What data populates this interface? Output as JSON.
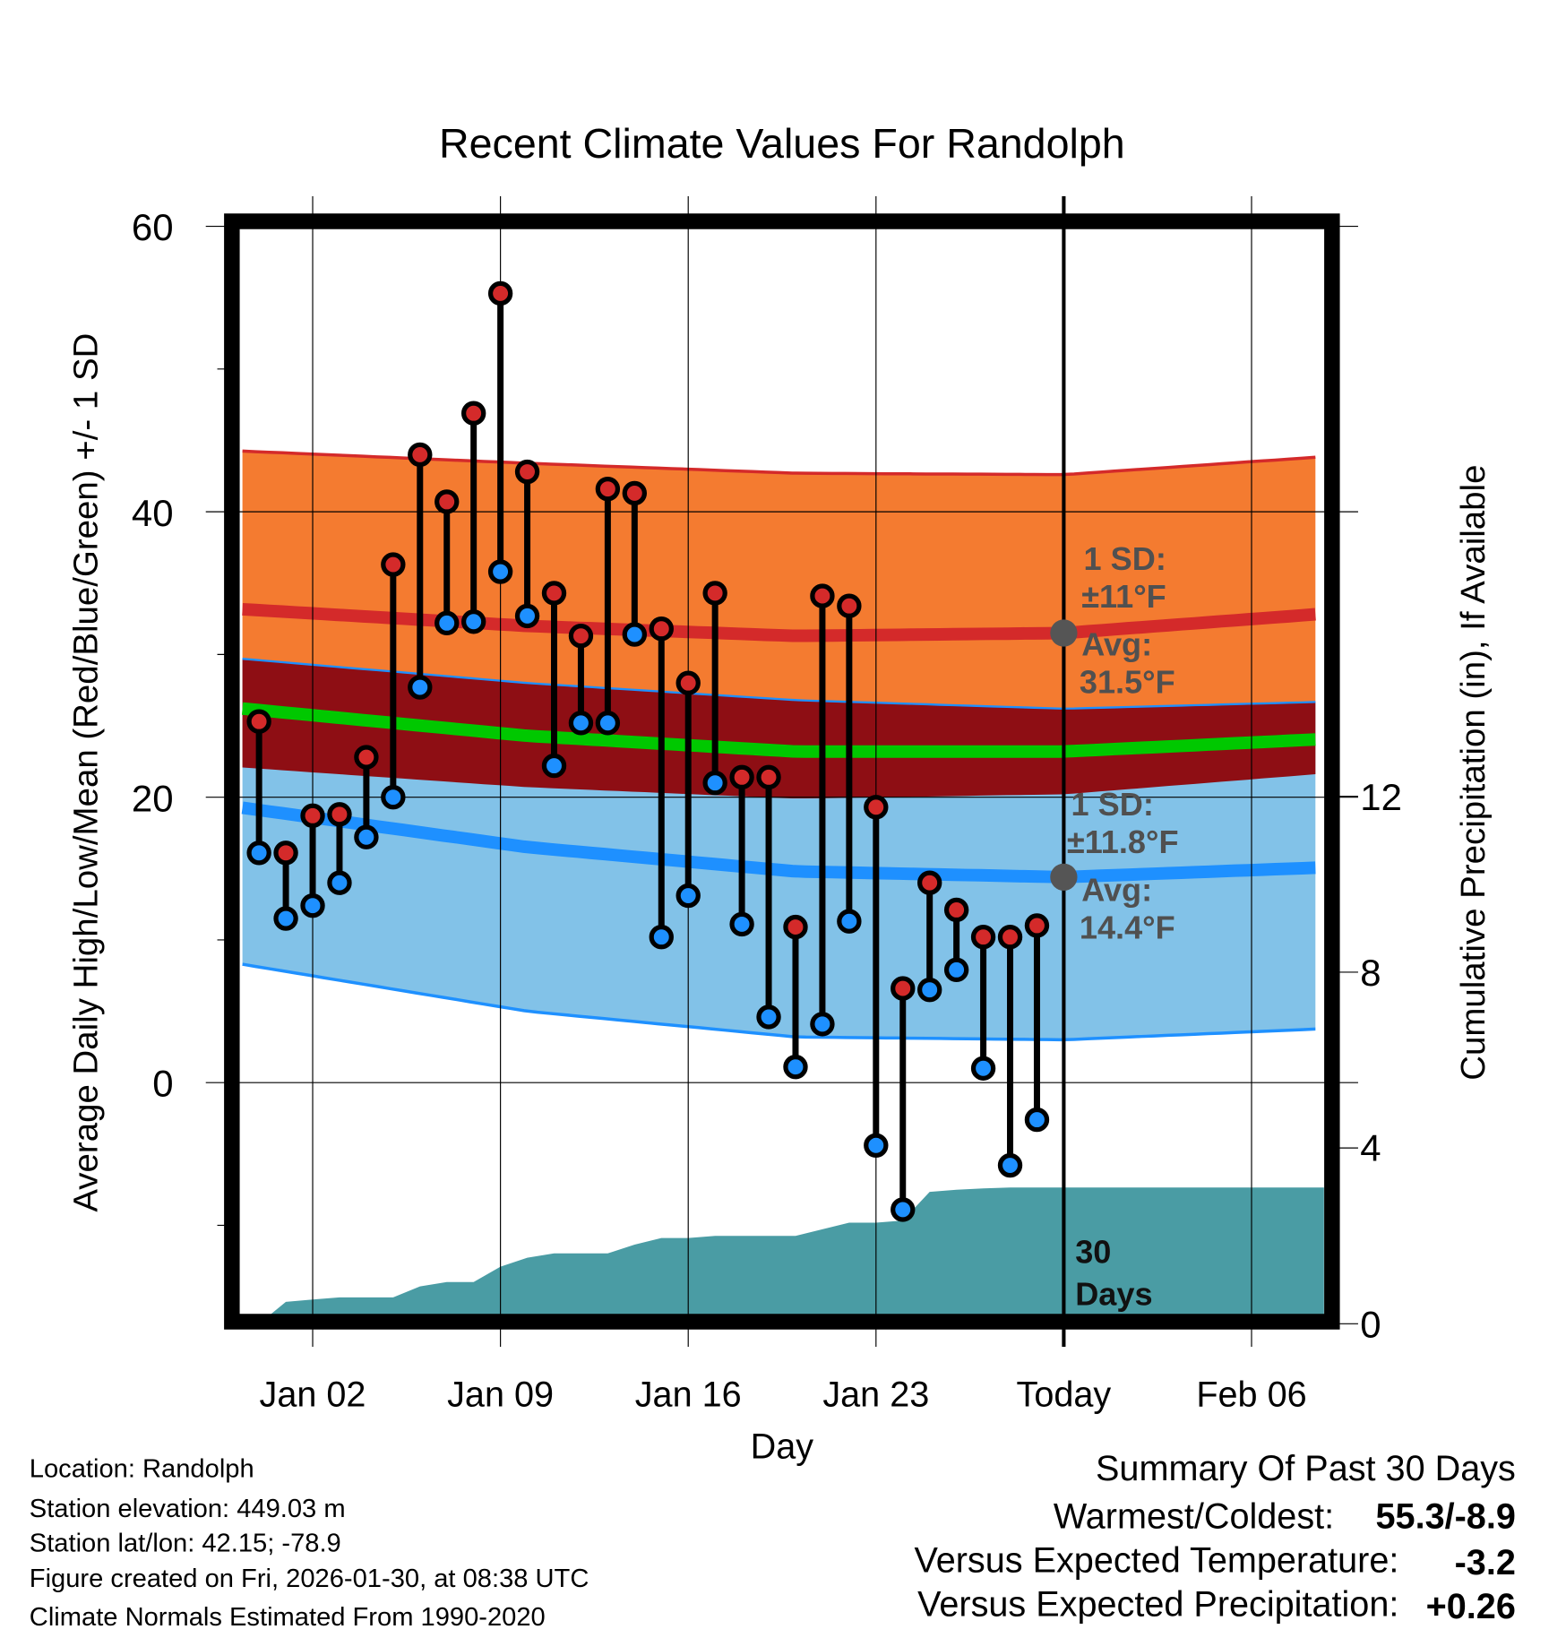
{
  "chart_data": {
    "type": "line",
    "title": "Recent Climate Values For Randolph",
    "xlabel": "Day",
    "ylabel": "Average Daily High/Low/Mean (Red/Blue/Green) +/- 1 SD",
    "y2label": "Cumulative Precipitation (in), If Available",
    "ylim": [
      -16.7,
      60
    ],
    "y2lim": [
      0,
      12
    ],
    "yticks": [
      "60",
      "40",
      "20",
      "0"
    ],
    "y2ticks": [
      "12",
      "8",
      "4",
      "0"
    ],
    "xticks": [
      {
        "day": 2,
        "label": "Jan 02"
      },
      {
        "day": 9,
        "label": "Jan 09"
      },
      {
        "day": 16,
        "label": "Jan 16"
      },
      {
        "day": 23,
        "label": "Jan 23"
      },
      {
        "day": 30,
        "label": "Today"
      },
      {
        "day": 37,
        "label": "Feb 06"
      }
    ],
    "day_origin": "Dec 31",
    "daily_high": [
      25.3,
      16.1,
      18.7,
      18.8,
      22.8,
      36.3,
      44.0,
      40.7,
      46.9,
      55.3,
      42.8,
      34.3,
      31.3,
      41.6,
      41.3,
      31.8,
      28.0,
      34.3,
      21.4,
      21.4,
      10.9,
      34.1,
      33.4,
      19.3,
      6.6,
      14.0,
      12.1,
      10.2,
      10.2,
      11.0
    ],
    "daily_low": [
      16.1,
      11.5,
      12.4,
      14.0,
      17.2,
      20.0,
      27.7,
      32.2,
      32.3,
      35.8,
      32.7,
      22.2,
      25.2,
      25.2,
      31.4,
      10.2,
      13.1,
      21.0,
      11.1,
      4.6,
      1.1,
      4.1,
      11.3,
      -4.4,
      -8.9,
      6.5,
      7.9,
      1.0,
      -5.8,
      -2.6
    ],
    "cumulative_precip": [
      0.0,
      0.5,
      0.55,
      0.6,
      0.6,
      0.6,
      0.85,
      0.95,
      0.95,
      1.3,
      1.5,
      1.6,
      1.6,
      1.6,
      1.8,
      1.95,
      1.95,
      2.0,
      2.0,
      2.0,
      2.0,
      2.15,
      2.3,
      2.3,
      2.35,
      3.0,
      3.05,
      3.08,
      3.1,
      3.1
    ],
    "normals": {
      "days": [
        0,
        10,
        20,
        30,
        40
      ],
      "high_upper": [
        44.2,
        43.4,
        42.7,
        42.6,
        43.9
      ],
      "high_mean": [
        33.1,
        32.0,
        31.3,
        31.5,
        32.9
      ],
      "high_lower": [
        22.0,
        20.7,
        19.9,
        20.2,
        21.7
      ],
      "low_upper": [
        29.6,
        28.0,
        26.8,
        26.2,
        26.7
      ],
      "low_mean": [
        19.1,
        16.5,
        14.8,
        14.4,
        15.1
      ],
      "low_lower": [
        8.1,
        5.0,
        3.2,
        3.0,
        3.8
      ],
      "mean": [
        26.1,
        24.3,
        23.2,
        23.2,
        24.1
      ]
    },
    "annotations": {
      "high_sd_label": "1 SD:",
      "high_sd": "±11°F",
      "high_avg_label": "Avg:",
      "high_avg": "31.5°F",
      "low_sd_label": "1 SD:",
      "low_sd": "±11.8°F",
      "low_avg_label": "Avg:",
      "low_avg": "14.4°F",
      "days_num": "30",
      "days_word": "Days"
    },
    "colors": {
      "high": "#d42a2a",
      "low": "#1e90ff",
      "mean": "#00c800",
      "high_band": "#f47b30",
      "low_band": "#82c2e8",
      "overlap": "#8e0e14",
      "precip": "#4a9ca4"
    }
  },
  "footer": {
    "location": "Location: Randolph",
    "elevation": "Station elevation: 449.03 m",
    "latlon": "Station lat/lon: 42.15; -78.9",
    "created": "Figure created on Fri, 2026-01-30, at 08:38 UTC",
    "normals": "Climate Normals Estimated From 1990-2020"
  },
  "summary": {
    "title": "Summary Of Past 30 Days",
    "warm_label": "Warmest/Coldest:",
    "warm_value": "55.3/-8.9",
    "temp_label": "Versus Expected Temperature:",
    "temp_value": "-3.2",
    "precip_label": "Versus Expected Precipitation:",
    "precip_value": "+0.26",
    "temp_color": "#1e90ff",
    "precip_color": "#22bb22"
  }
}
